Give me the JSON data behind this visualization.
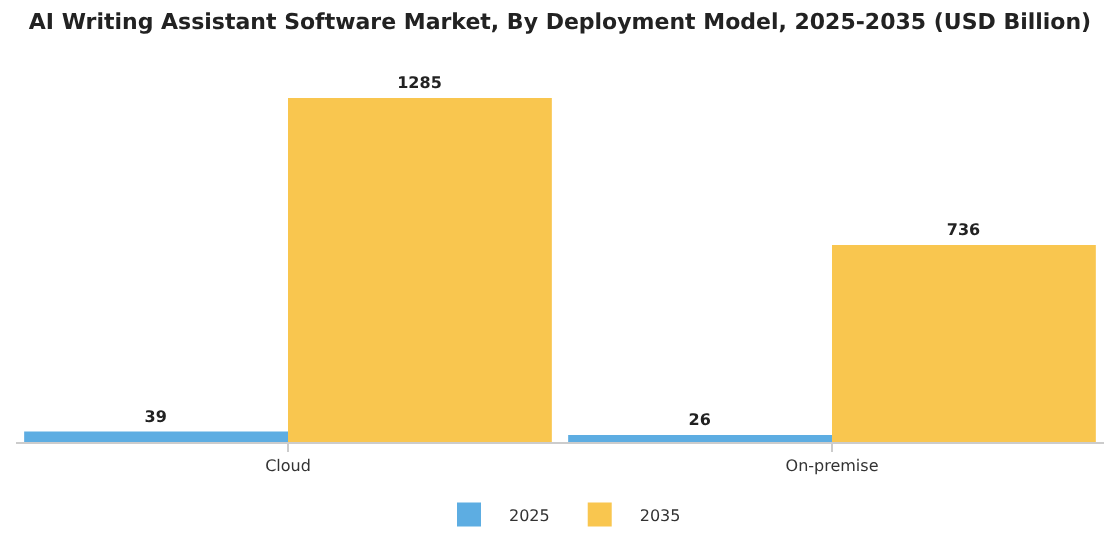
{
  "chart_data": {
    "type": "bar",
    "title": "AI Writing Assistant Software Market, By Deployment Model, 2025-2035 (USD Billion)",
    "categories": [
      "Cloud",
      "On-premise"
    ],
    "series": [
      {
        "name": "2025",
        "color": "#5dade2",
        "values": [
          39,
          26
        ]
      },
      {
        "name": "2035",
        "color": "#f9c64f",
        "values": [
          1285,
          736
        ]
      }
    ],
    "data_labels": true,
    "grid": false,
    "legend": "bottom"
  }
}
